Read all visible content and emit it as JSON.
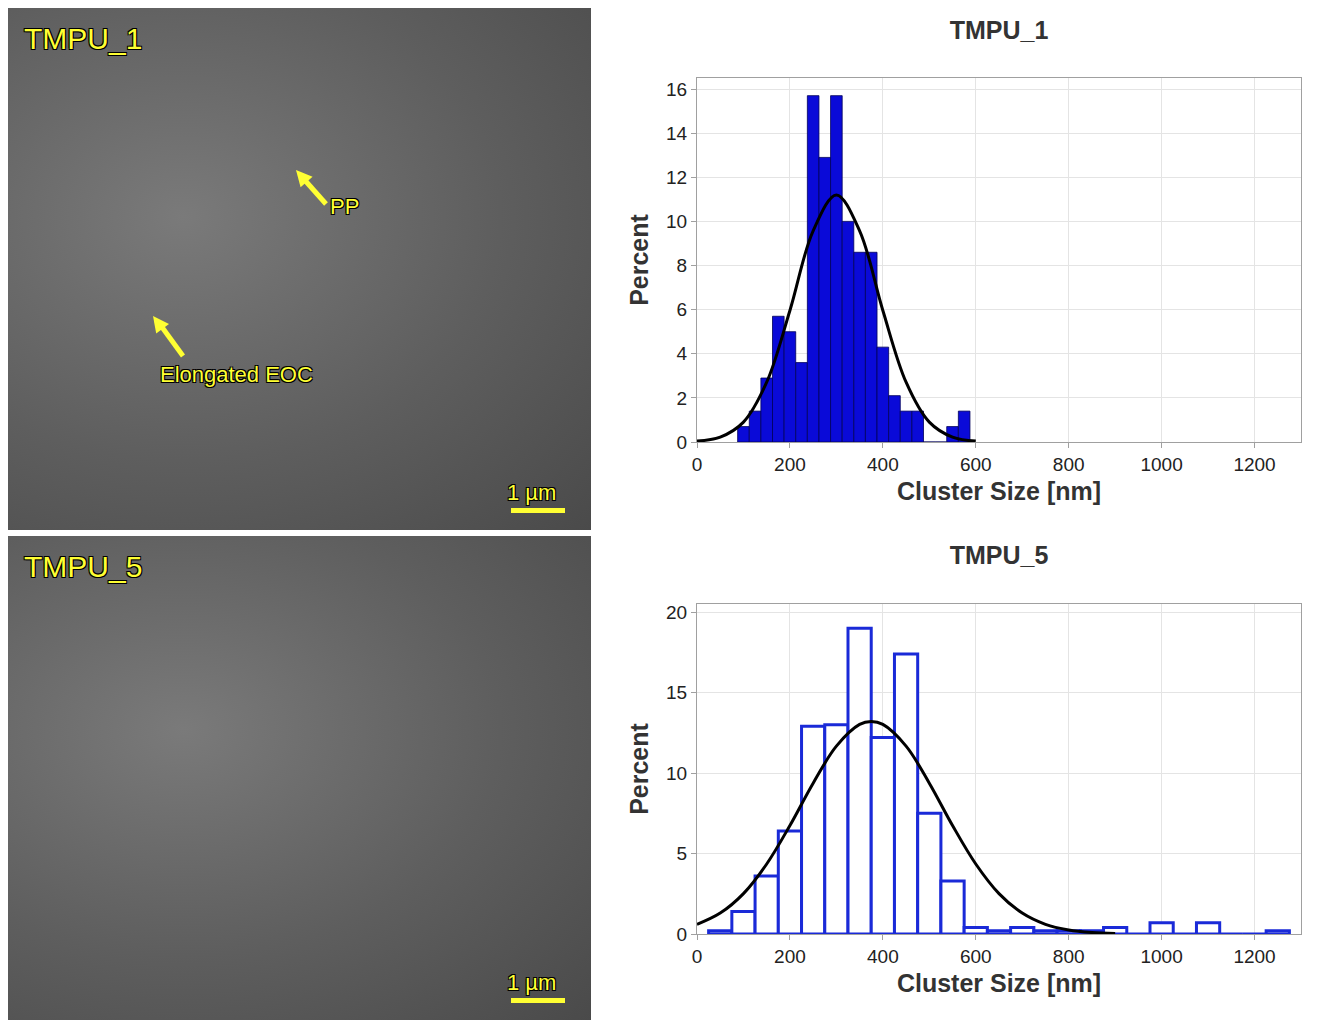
{
  "images": [
    {
      "title": "TMPU_1",
      "labels": [
        "PP",
        "Elongated EOC"
      ],
      "scale_bar": "1 µm"
    },
    {
      "title": "TMPU_5",
      "labels": [],
      "scale_bar": "1 µm"
    }
  ],
  "chart_data": [
    {
      "type": "histogram",
      "title": "TMPU_1",
      "x_label": "Cluster Size [nm]",
      "y_label": "Percent",
      "bins": [
        87.5,
        112.5,
        137.5,
        162.5,
        187.5,
        212.5,
        237.5,
        262.5,
        287.5,
        312.5,
        337.5,
        362.5,
        387.5,
        412.5,
        437.5,
        462.5,
        487.5,
        512.5,
        537.5,
        562.5,
        587.5
      ],
      "counts": [
        0.7,
        1.4,
        2.9,
        5.7,
        5.0,
        3.6,
        15.7,
        12.9,
        15.7,
        10.0,
        8.6,
        8.6,
        4.3,
        2.1,
        1.4,
        1.4,
        0,
        0,
        0.7,
        1.4
      ],
      "color": "#0a0ad8",
      "marker": "filled",
      "fit": {
        "type": "line",
        "color": "#000000",
        "x": [
          0,
          50,
          100,
          150,
          200,
          250,
          300,
          350,
          400,
          450,
          500,
          550,
          600
        ],
        "values": [
          0.04,
          0.22,
          0.9,
          2.71,
          5.96,
          9.57,
          11.2,
          9.57,
          5.96,
          2.71,
          0.9,
          0.22,
          0.04
        ]
      },
      "xlim": [
        0,
        1300
      ],
      "xticks": [
        0,
        200,
        400,
        600,
        800,
        1000,
        1200
      ],
      "ylim": [
        0,
        16.5
      ],
      "yticks": [
        0,
        2,
        4,
        6,
        8,
        10,
        12,
        14,
        16
      ],
      "grid": true
    },
    {
      "type": "histogram",
      "title": "TMPU_5",
      "x_label": "Cluster Size [nm]",
      "y_label": "Percent",
      "bins": [
        25,
        75,
        125,
        175,
        225,
        275,
        325,
        375,
        425,
        475,
        525,
        575,
        625,
        675,
        725,
        775,
        825,
        875,
        925,
        975,
        1025,
        1075,
        1125,
        1175,
        1225,
        1275
      ],
      "counts": [
        0.2,
        1.4,
        3.6,
        6.4,
        12.9,
        13.0,
        19.0,
        12.2,
        17.4,
        7.5,
        3.3,
        0.4,
        0.2,
        0.4,
        0.2,
        0.2,
        0.2,
        0.4,
        0,
        0.7,
        0,
        0.7,
        0,
        0,
        0.2
      ],
      "color": "#1a2ad8",
      "marker": "hollow",
      "fit": {
        "type": "line",
        "color": "#000000",
        "x": [
          0,
          50,
          100,
          150,
          200,
          250,
          300,
          350,
          375,
          400,
          450,
          500,
          550,
          600,
          650,
          700,
          750,
          800,
          850,
          900
        ],
        "values": [
          0.6,
          1.3,
          2.51,
          4.35,
          6.74,
          9.37,
          11.67,
          13.02,
          13.2,
          13.02,
          11.67,
          9.37,
          6.74,
          4.35,
          2.51,
          1.3,
          0.6,
          0.25,
          0.09,
          0.03
        ]
      },
      "xlim": [
        0,
        1300
      ],
      "xticks": [
        0,
        200,
        400,
        600,
        800,
        1000,
        1200
      ],
      "ylim": [
        0,
        20.5
      ],
      "yticks": [
        0,
        5,
        10,
        15,
        20
      ],
      "grid": true
    }
  ]
}
